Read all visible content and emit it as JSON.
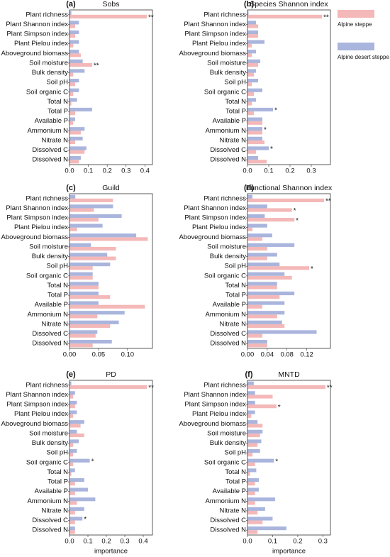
{
  "chart_data": [
    {
      "type": "hbar",
      "letter": "(a)",
      "title": "Sobs",
      "categories": [
        "Plant richness",
        "Plant Shannon index",
        "Plant Simpson index",
        "Plant Pielou index",
        "Aboveground biomass",
        "Soil moisture",
        "Bulk density",
        "Soil pH",
        "Soil organic C",
        "Total N",
        "Total P",
        "Available P",
        "Ammonium N",
        "Nitrate N",
        "Dissolved C",
        "Dissolved N"
      ],
      "series": [
        {
          "color": "#f4b8b8",
          "values": [
            0.41,
            0.03,
            0.03,
            0.02,
            0.06,
            0.12,
            0.02,
            0.03,
            0.02,
            0.01,
            0.03,
            0.02,
            0.06,
            0.03,
            0.08,
            0.05
          ]
        },
        {
          "color": "#aab5dd",
          "values": [
            0.01,
            0.05,
            0.05,
            0.05,
            0.05,
            0.07,
            0.08,
            0.05,
            0.05,
            0.04,
            0.12,
            0.03,
            0.08,
            0.07,
            0.09,
            0.06
          ]
        }
      ],
      "annotations": [
        {
          "category": 0,
          "series": 0,
          "text": "**"
        },
        {
          "category": 5,
          "series": 0,
          "text": "**"
        }
      ],
      "xlim": [
        0,
        0.44
      ],
      "xticks": [
        {
          "value": 0,
          "label": "0.0"
        },
        0.1,
        0.2,
        0.3,
        0.4
      ]
    },
    {
      "type": "hbar",
      "letter": "(b)",
      "title": "Species Shannon index",
      "categories": [
        "Plant richness",
        "Plant Shannon index",
        "Plant Simpson index",
        "Plant Pielou index",
        "Aboveground biomass",
        "Soil moisture",
        "Bulk density",
        "Soil pH",
        "Soil organic C",
        "Total N",
        "Total P",
        "Available P",
        "Ammonium N",
        "Nitrate N",
        "Dissolved C",
        "Dissolved N"
      ],
      "series": [
        {
          "name": "Alpine steppe",
          "color": "#f4b8b8",
          "values": [
            0.35,
            0.05,
            0.05,
            0.02,
            0.02,
            0.05,
            0.03,
            0.02,
            0.03,
            0.02,
            0.03,
            0.07,
            0.07,
            0.08,
            0.04,
            0.09
          ]
        },
        {
          "name": "Alpine desert steppe",
          "color": "#aab5dd",
          "values": [
            0.005,
            0.04,
            0.05,
            0.08,
            0.04,
            0.06,
            0.04,
            0.05,
            0.07,
            0.04,
            0.12,
            0.07,
            0.07,
            0.07,
            0.1,
            0.05
          ]
        }
      ],
      "annotations": [
        {
          "category": 0,
          "series": 0,
          "text": "**"
        },
        {
          "category": 10,
          "series": 1,
          "text": "*"
        },
        {
          "category": 12,
          "series": 1,
          "text": "*"
        },
        {
          "category": 14,
          "series": 1,
          "text": "*"
        }
      ],
      "xlim": [
        0,
        0.39
      ],
      "xticks": [
        {
          "value": 0,
          "label": "0.0"
        },
        0.1,
        0.2,
        0.3
      ]
    },
    {
      "type": "hbar",
      "letter": "(c)",
      "title": "Guild",
      "categories": [
        "Plant richness",
        "Plant Shannon index",
        "Plant Simpson index",
        "Plant Pielou index",
        "Aboveground biomass",
        "Soil moisture",
        "Bulk density",
        "Soil pH",
        "Soil organic C",
        "Total N",
        "Total P",
        "Available P",
        "Ammonium N",
        "Nitrate N",
        "Dissolved C",
        "Dissolved N"
      ],
      "series": [
        {
          "color": "#f4b8b8",
          "values": [
            0.075,
            0.042,
            0.05,
            0.013,
            0.135,
            0.08,
            0.08,
            0.04,
            0.04,
            0.05,
            0.07,
            0.13,
            0.048,
            0.07,
            0.045,
            0.04
          ]
        },
        {
          "color": "#aab5dd",
          "values": [
            0.01,
            0.075,
            0.09,
            0.057,
            0.115,
            0.037,
            0.065,
            0.07,
            0.04,
            0.05,
            0.05,
            0.05,
            0.095,
            0.085,
            0.048,
            0.073
          ]
        }
      ],
      "annotations": [],
      "xlim": [
        0,
        0.143
      ],
      "xticks": [
        {
          "value": 0,
          "label": "0.00"
        },
        0.05,
        {
          "value": 0.1,
          "label": "0.10"
        }
      ]
    },
    {
      "type": "hbar",
      "letter": "(d)",
      "title": "Functional Shannon index",
      "categories": [
        "Plant richness",
        "Plant Shannon index",
        "Plant Simpson index",
        "Plant Pielou index",
        "Aboveground biomass",
        "Soil moisture",
        "Bulk density",
        "Soil pH",
        "Soil organic C",
        "Total N",
        "Total P",
        "Available P",
        "Ammonium N",
        "Nitrate N",
        "Dissolved C",
        "Dissolved N"
      ],
      "series": [
        {
          "color": "#f4b8b8",
          "values": [
            0.155,
            0.09,
            0.095,
            0.01,
            0.03,
            0.04,
            0.04,
            0.125,
            0.09,
            0.06,
            0.065,
            0.03,
            0.06,
            0.075,
            0.03,
            0.04
          ]
        },
        {
          "color": "#aab5dd",
          "values": [
            0.01,
            0.04,
            0.035,
            0.04,
            0.05,
            0.095,
            0.06,
            0.065,
            0.075,
            0.06,
            0.095,
            0.075,
            0.075,
            0.07,
            0.14,
            0.04
          ]
        }
      ],
      "annotations": [
        {
          "category": 0,
          "series": 0,
          "text": "**"
        },
        {
          "category": 1,
          "series": 0,
          "text": "*"
        },
        {
          "category": 2,
          "series": 0,
          "text": "*"
        },
        {
          "category": 7,
          "series": 0,
          "text": "*"
        }
      ],
      "xlim": [
        0,
        0.168
      ],
      "xticks": [
        {
          "value": 0,
          "label": "0.00"
        },
        0.04,
        0.08,
        0.12
      ]
    },
    {
      "type": "hbar",
      "letter": "(e)",
      "title": "PD",
      "xlabel": "importance",
      "categories": [
        "Plant richness",
        "Plant Shannon index",
        "Plant Simpson index",
        "Plant Pielou index",
        "Aboveground biomass",
        "Soil moisture",
        "Bulk density",
        "Soil pH",
        "Soil organic C",
        "Total N",
        "Total P",
        "Available P",
        "Ammonium N",
        "Nitrate N",
        "Dissolved C",
        "Dissolved N"
      ],
      "series": [
        {
          "color": "#f4b8b8",
          "values": [
            0.42,
            0.02,
            0.03,
            0.02,
            0.06,
            0.08,
            0.02,
            0.02,
            0.02,
            0.01,
            0.03,
            0.03,
            0.04,
            0.03,
            0.03,
            0.03
          ]
        },
        {
          "color": "#aab5dd",
          "values": [
            0.01,
            0.03,
            0.04,
            0.04,
            0.08,
            0.04,
            0.05,
            0.04,
            0.11,
            0.03,
            0.08,
            0.1,
            0.14,
            0.08,
            0.07,
            0.03
          ]
        }
      ],
      "annotations": [
        {
          "category": 0,
          "series": 0,
          "text": "**"
        },
        {
          "category": 8,
          "series": 1,
          "text": "*"
        },
        {
          "category": 14,
          "series": 1,
          "text": "*"
        }
      ],
      "xlim": [
        0,
        0.45
      ],
      "xticks": [
        {
          "value": 0,
          "label": "0.0"
        },
        0.1,
        0.2,
        0.3,
        0.4
      ]
    },
    {
      "type": "hbar",
      "letter": "(f)",
      "title": "MNTD",
      "xlabel": "importance",
      "categories": [
        "Plant richness",
        "Plant Shannon index",
        "Plant Simpson index",
        "Plant Pielou index",
        "Aboveground biomass",
        "Soil moisture",
        "Bulk density",
        "Soil pH",
        "Soil organic C",
        "Total N",
        "Total P",
        "Available P",
        "Ammonium N",
        "Nitrate N",
        "Dissolved C",
        "Dissolved N"
      ],
      "series": [
        {
          "color": "#f4b8b8",
          "values": [
            0.31,
            0.1,
            0.115,
            0.015,
            0.06,
            0.05,
            0.04,
            0.02,
            0.03,
            0.01,
            0.03,
            0.03,
            0.03,
            0.04,
            0.06,
            0.04
          ]
        },
        {
          "color": "#aab5dd",
          "values": [
            0.025,
            0.03,
            0.03,
            0.03,
            0.04,
            0.06,
            0.055,
            0.05,
            0.105,
            0.035,
            0.045,
            0.045,
            0.11,
            0.07,
            0.1,
            0.155
          ]
        }
      ],
      "annotations": [
        {
          "category": 0,
          "series": 0,
          "text": "**"
        },
        {
          "category": 2,
          "series": 0,
          "text": "*"
        },
        {
          "category": 8,
          "series": 1,
          "text": "*"
        }
      ],
      "xlim": [
        0,
        0.33
      ],
      "xticks": [
        {
          "value": 0,
          "label": "0.0"
        },
        0.1,
        0.2,
        0.3
      ]
    }
  ]
}
